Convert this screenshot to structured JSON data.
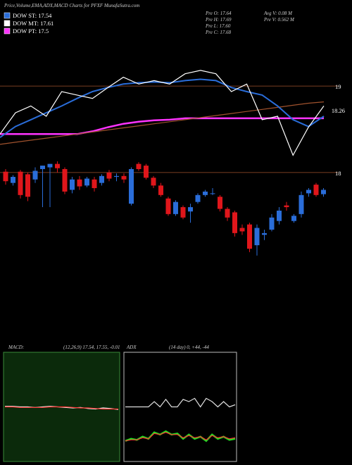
{
  "chart_data": [
    {
      "type": "candlestick",
      "title": "Price,Volume,EMA,ADX,MACD Charts for PFXF MunafaSutra.com",
      "legend": [
        {
          "name": "DOW ST: 17.54",
          "color": "#2a6dd9"
        },
        {
          "name": "DOW MT: 17.61",
          "color": "#ffffff"
        },
        {
          "name": "DOW PT: 17.5",
          "color": "#ff33ff"
        }
      ],
      "info": [
        "Pre  O: 17.64",
        "Pre  H: 17.69",
        "Pre  L: 17.60",
        "Pre  C: 17.68",
        "Avg V: 0.08 M",
        "Pre  V: 0.562 M"
      ],
      "ema_label": "18.26",
      "levels": [
        19,
        18
      ],
      "ylim": [
        16.9,
        19.75
      ],
      "open": [
        18.01,
        17.88,
        18.01,
        17.98,
        17.92,
        18.04,
        18.06,
        18.1,
        18.04,
        17.8,
        17.92,
        17.85,
        17.92,
        17.88,
        18.0,
        17.95,
        17.96,
        17.64,
        18.1,
        18.08,
        17.94,
        17.85,
        17.7,
        17.52,
        17.6,
        17.55,
        17.66,
        17.74,
        17.76,
        17.72,
        17.58,
        17.54,
        17.36,
        17.4,
        17.16,
        17.28,
        17.34,
        17.44,
        17.62,
        17.44,
        17.52,
        17.76,
        17.86,
        17.75
      ],
      "high": [
        18.04,
        17.97,
        18.03,
        18.0,
        18.06,
        18.08,
        18.1,
        18.13,
        18.06,
        17.95,
        17.96,
        17.95,
        17.95,
        17.98,
        18.03,
        17.99,
        17.99,
        18.06,
        18.12,
        18.1,
        17.96,
        17.88,
        17.72,
        17.68,
        17.62,
        17.64,
        17.76,
        17.8,
        17.82,
        17.74,
        17.6,
        17.56,
        17.4,
        17.42,
        17.4,
        17.34,
        17.52,
        17.6,
        17.66,
        17.52,
        17.78,
        17.82,
        17.88,
        17.82
      ],
      "low": [
        17.86,
        17.85,
        17.7,
        17.67,
        17.88,
        17.6,
        17.6,
        18.0,
        17.75,
        17.76,
        17.8,
        17.83,
        17.78,
        17.85,
        17.9,
        17.9,
        17.88,
        17.62,
        18.02,
        17.92,
        17.82,
        17.72,
        17.5,
        17.5,
        17.46,
        17.42,
        17.64,
        17.72,
        17.74,
        17.55,
        17.44,
        17.26,
        17.28,
        17.08,
        17.04,
        17.22,
        17.32,
        17.4,
        17.56,
        17.42,
        17.48,
        17.72,
        17.72,
        17.72
      ],
      "close": [
        17.9,
        17.95,
        17.74,
        17.72,
        18.02,
        18.08,
        18.1,
        18.05,
        17.78,
        17.92,
        17.84,
        17.93,
        17.82,
        17.96,
        17.93,
        17.96,
        17.92,
        18.04,
        18.04,
        17.94,
        17.85,
        17.74,
        17.52,
        17.66,
        17.48,
        17.6,
        17.74,
        17.78,
        17.76,
        17.58,
        17.48,
        17.3,
        17.32,
        17.12,
        17.36,
        17.3,
        17.48,
        17.56,
        17.6,
        17.5,
        17.74,
        17.8,
        17.74,
        17.8
      ],
      "up_color": "#2a6dd9",
      "down_color": "#e0161b",
      "top_ylim": [
        17.8,
        19.6
      ],
      "series": [
        {
          "name": "DOW PT: 17.5",
          "color": "#ff33ff",
          "values": [
            18.26,
            18.26,
            18.26,
            18.26,
            18.26,
            18.26,
            18.3,
            18.36,
            18.41,
            18.44,
            18.46,
            18.47,
            18.49,
            18.49,
            18.49,
            18.49,
            18.49,
            18.49,
            18.49,
            18.49,
            18.49,
            18.49
          ]
        },
        {
          "name": "EMA",
          "color": "#a0522d",
          "values": [
            18.11,
            18.14,
            18.17,
            18.2,
            18.23,
            18.26,
            18.29,
            18.32,
            18.35,
            18.38,
            18.41,
            18.44,
            18.47,
            18.5,
            18.53,
            18.56,
            18.59,
            18.62,
            18.65,
            18.68,
            18.71,
            18.73
          ]
        },
        {
          "name": "DOW ST: 17.54",
          "color": "#2a6dd9",
          "values": [
            18.21,
            18.37,
            18.47,
            18.57,
            18.67,
            18.78,
            18.88,
            18.94,
            18.99,
            19.01,
            19.02,
            19.01,
            19.04,
            19.06,
            19.04,
            18.94,
            18.88,
            18.83,
            18.67,
            18.47,
            18.37,
            18.52
          ]
        },
        {
          "name": "DOW MT: 17.61",
          "color": "#ffffff",
          "values": [
            18.26,
            18.57,
            18.67,
            18.52,
            18.88,
            18.83,
            18.78,
            18.94,
            19.09,
            18.99,
            19.04,
            18.99,
            19.14,
            19.19,
            19.14,
            18.88,
            18.99,
            18.47,
            18.52,
            17.95,
            18.36,
            18.67
          ]
        }
      ]
    },
    {
      "type": "line",
      "title": "MACD:",
      "subtitle": "(12,26,9) 17.54, 17.55, -0.01",
      "ylim": [
        -1,
        1
      ],
      "series": [
        {
          "name": "MACD",
          "color": "#ffffff",
          "values": [
            0.01,
            0.01,
            0.0,
            0.0,
            -0.01,
            0.0,
            0.01,
            0.0,
            -0.01,
            -0.02,
            -0.01,
            -0.03,
            -0.04,
            -0.02,
            -0.03,
            -0.05
          ]
        },
        {
          "name": "Signal",
          "color": "#ff3030",
          "values": [
            0.0,
            0.0,
            -0.01,
            -0.01,
            -0.01,
            -0.01,
            0.0,
            0.0,
            0.0,
            -0.01,
            -0.02,
            -0.02,
            -0.03,
            -0.04,
            -0.04,
            -0.04
          ]
        }
      ]
    },
    {
      "type": "line",
      "title": "ADX",
      "subtitle": "(14 day) 0, +44, -44",
      "ylim": [
        0,
        100
      ],
      "series": [
        {
          "name": "ADX",
          "color": "#dddddd",
          "values": [
            50,
            50,
            50,
            50,
            50,
            55,
            50,
            57,
            50,
            50,
            57,
            55,
            58,
            50,
            58,
            55,
            50,
            55,
            50,
            52
          ]
        },
        {
          "name": "+DI",
          "color": "#22dd22",
          "values": [
            18,
            20,
            19,
            22,
            20,
            26,
            24,
            27,
            24,
            25,
            20,
            24,
            20,
            22,
            18,
            24,
            20,
            22,
            19,
            20
          ]
        },
        {
          "name": "-DI",
          "color": "#ff3030",
          "values": [
            18,
            19,
            19,
            21,
            20,
            25,
            24,
            26,
            24,
            24,
            21,
            23,
            21,
            22,
            19,
            23,
            21,
            22,
            20,
            21
          ]
        }
      ]
    }
  ]
}
